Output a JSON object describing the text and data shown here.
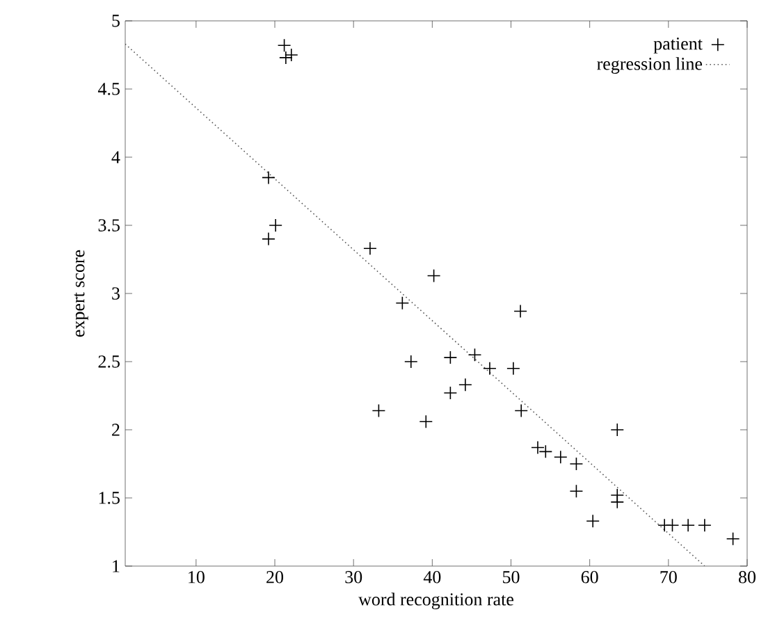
{
  "chart_data": {
    "type": "scatter",
    "xlabel": "word recognition rate",
    "ylabel": "expert score",
    "xlim": [
      1,
      80
    ],
    "ylim": [
      1,
      5
    ],
    "xticks": [
      10,
      20,
      30,
      40,
      50,
      60,
      70,
      80
    ],
    "yticks": [
      1,
      1.5,
      2,
      2.5,
      3,
      3.5,
      4,
      4.5,
      5
    ],
    "legend": "top right",
    "grid": false,
    "series": [
      {
        "name": "patient",
        "marker": "cross",
        "color": "#000000",
        "x": [
          21.2,
          21.4,
          22.1,
          19.2,
          20.1,
          19.2,
          32.1,
          36.2,
          40.2,
          51.2,
          37.3,
          42.3,
          45.4,
          47.3,
          50.3,
          44.2,
          42.3,
          51.3,
          33.2,
          39.2,
          53.4,
          54.4,
          56.3,
          58.3,
          58.3,
          60.4,
          63.5,
          63.5,
          63.5,
          69.5,
          70.5,
          72.5,
          74.6,
          78.2
        ],
        "values": [
          4.82,
          4.73,
          4.75,
          3.85,
          3.5,
          3.4,
          3.33,
          2.93,
          3.13,
          2.87,
          2.5,
          2.53,
          2.55,
          2.45,
          2.45,
          2.33,
          2.27,
          2.14,
          2.14,
          2.06,
          1.87,
          1.84,
          1.8,
          1.75,
          1.55,
          1.33,
          2.0,
          1.52,
          1.47,
          1.3,
          1.3,
          1.3,
          1.3,
          1.2
        ]
      },
      {
        "name": "regression line",
        "type": "line",
        "line_style": "dotted",
        "marker": "none",
        "color": "#555555",
        "x": [
          1,
          74.6
        ],
        "values": [
          4.83,
          1.0
        ]
      }
    ]
  }
}
